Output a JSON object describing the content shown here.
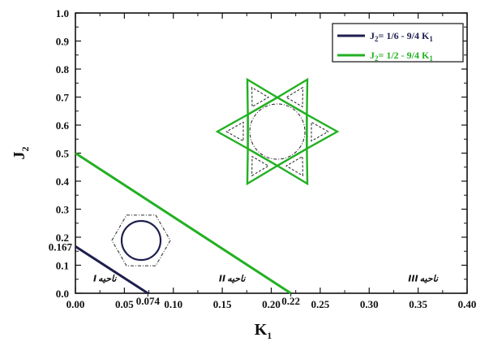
{
  "chart_data": {
    "type": "line",
    "xlabel": "K",
    "xlabel_sub": "1",
    "ylabel": "J",
    "ylabel_sub": "2",
    "xlim": [
      0.0,
      0.4
    ],
    "ylim": [
      0.0,
      1.0
    ],
    "xticks": [
      "0.00",
      "0.05",
      "0.10",
      "0.15",
      "0.20",
      "0.25",
      "0.30",
      "0.35",
      "0.40"
    ],
    "yticks": [
      "0.0",
      "0.1",
      "0.2",
      "0.3",
      "0.4",
      "0.5",
      "0.6",
      "0.7",
      "0.8",
      "0.9",
      "1.0"
    ],
    "extra_tick_labels": {
      "x": [
        {
          "value": 0.074,
          "label": "0.074"
        },
        {
          "value": 0.22,
          "label": "0.22"
        }
      ],
      "y": [
        {
          "value": 0.167,
          "label": "0.167"
        }
      ]
    },
    "series": [
      {
        "name": "J2= 1/6 - 9/4 K1",
        "legend_main": "J",
        "legend_sub": "2",
        "legend_mid": "= 1/6 - 9/4 K",
        "legend_sub2": "1",
        "color": "#1e1f4d",
        "x": [
          0.0,
          0.074
        ],
        "y": [
          0.167,
          0.0
        ]
      },
      {
        "name": "J2= 1/2 - 9/4 K1",
        "legend_main": "J",
        "legend_sub": "2",
        "legend_mid": "= 1/2 - 9/4 K",
        "legend_sub2": "1",
        "color": "#22b022",
        "x": [
          0.0,
          0.22
        ],
        "y": [
          0.5,
          0.0
        ]
      }
    ],
    "region_labels": [
      {
        "numeral": "I",
        "word": "ناحیه",
        "x": 0.03,
        "y": 0.03
      },
      {
        "numeral": "II",
        "word": "ناحیه",
        "x": 0.16,
        "y": 0.03
      },
      {
        "numeral": "III",
        "word": "ناحیه",
        "x": 0.355,
        "y": 0.03
      }
    ],
    "grid": false,
    "legend_position": "top-right"
  }
}
